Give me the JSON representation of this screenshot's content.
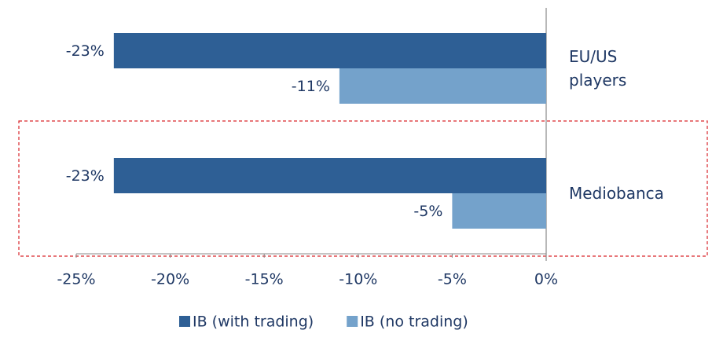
{
  "chart_data": {
    "type": "hbar",
    "categories": [
      "EU/US\nplayers",
      "Mediobanca"
    ],
    "series": [
      {
        "name": "IB (with trading)",
        "color": "#2e5f95",
        "values": [
          -23,
          -23
        ],
        "value_labels": [
          "-23%",
          "-23%"
        ]
      },
      {
        "name": "IB (no trading)",
        "color": "#74a2cb",
        "values": [
          -11,
          -5
        ],
        "value_labels": [
          "-11%",
          "-5%"
        ]
      }
    ],
    "xlim": [
      -25,
      0
    ],
    "xticks": [
      {
        "value": -25,
        "label": "-25%"
      },
      {
        "value": -20,
        "label": "-20%"
      },
      {
        "value": -15,
        "label": "-15%"
      },
      {
        "value": -10,
        "label": "-10%"
      },
      {
        "value": -5,
        "label": "-5%"
      },
      {
        "value": 0,
        "label": "0%"
      }
    ],
    "legend": "bottom"
  }
}
